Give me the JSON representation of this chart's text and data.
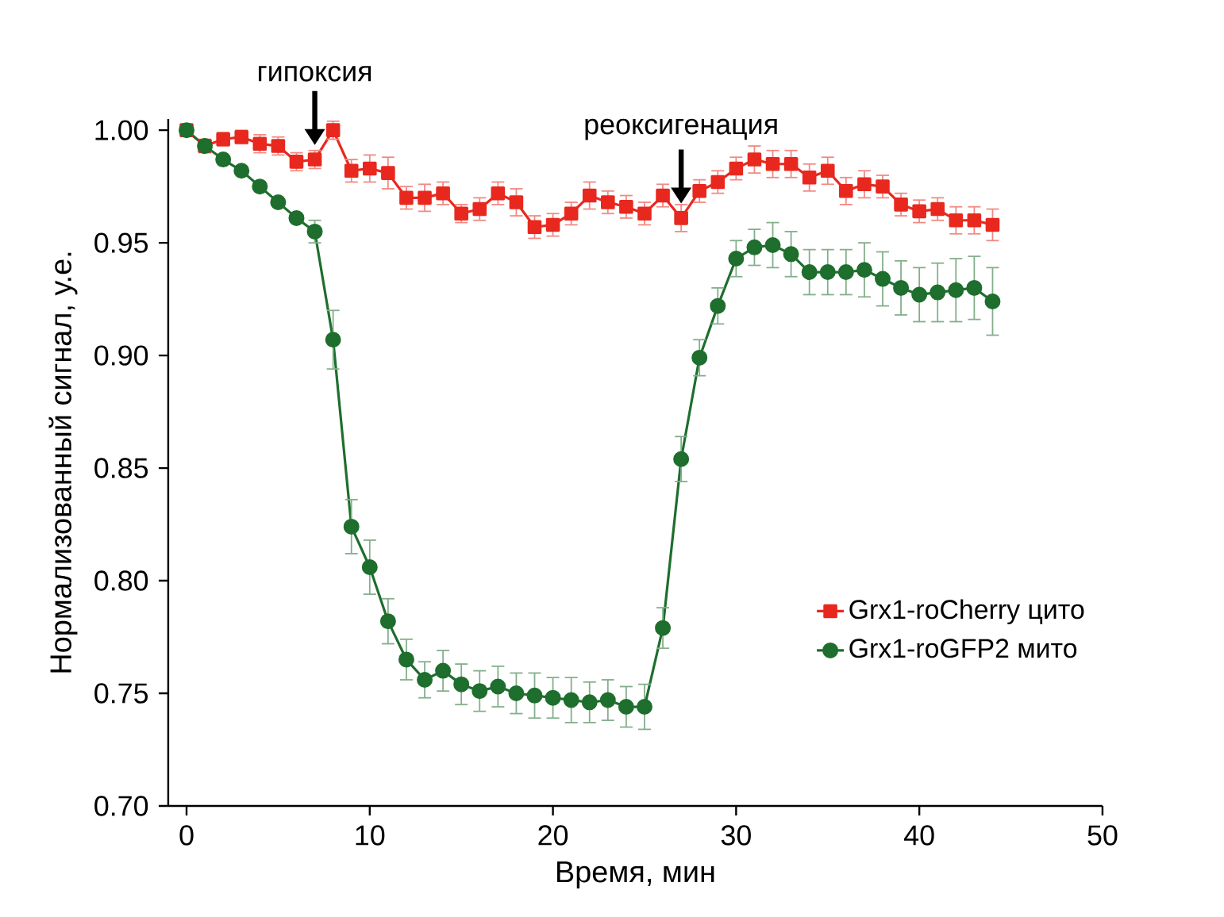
{
  "chart_data": {
    "type": "line",
    "xlabel": "Время, мин",
    "ylabel": "Нормализованный сигнал, у.е.",
    "x": [
      0,
      1,
      2,
      3,
      4,
      5,
      6,
      7,
      8,
      9,
      10,
      11,
      12,
      13,
      14,
      15,
      16,
      17,
      18,
      19,
      20,
      21,
      22,
      23,
      24,
      25,
      26,
      27,
      28,
      29,
      30,
      31,
      32,
      33,
      34,
      35,
      36,
      37,
      38,
      39,
      40,
      41,
      42,
      43,
      44
    ],
    "series": [
      {
        "name": "Grx1-roCherry цито",
        "color": "#e8281e",
        "marker": "square",
        "values": [
          1.0,
          0.993,
          0.996,
          0.997,
          0.994,
          0.993,
          0.986,
          0.987,
          1.0,
          0.982,
          0.983,
          0.981,
          0.97,
          0.97,
          0.972,
          0.963,
          0.965,
          0.972,
          0.968,
          0.957,
          0.958,
          0.963,
          0.971,
          0.968,
          0.966,
          0.963,
          0.971,
          0.961,
          0.973,
          0.977,
          0.983,
          0.987,
          0.985,
          0.985,
          0.979,
          0.982,
          0.973,
          0.976,
          0.975,
          0.967,
          0.964,
          0.965,
          0.96,
          0.96,
          0.958
        ],
        "errors": [
          null,
          0.003,
          0.003,
          0.003,
          0.004,
          0.004,
          0.004,
          0.004,
          0.004,
          0.005,
          0.006,
          0.007,
          0.005,
          0.006,
          0.005,
          0.004,
          0.005,
          0.005,
          0.006,
          0.005,
          0.005,
          0.005,
          0.006,
          0.005,
          0.005,
          0.005,
          0.005,
          0.006,
          0.005,
          0.005,
          0.005,
          0.006,
          0.006,
          0.006,
          0.006,
          0.006,
          0.006,
          0.006,
          0.005,
          0.005,
          0.005,
          0.005,
          0.006,
          0.006,
          0.007
        ]
      },
      {
        "name": "Grx1-roGFP2 мито",
        "color": "#1e6e2d",
        "marker": "circle",
        "values": [
          1.0,
          0.993,
          0.987,
          0.982,
          0.975,
          0.968,
          0.961,
          0.955,
          0.907,
          0.824,
          0.806,
          0.782,
          0.765,
          0.756,
          0.76,
          0.754,
          0.751,
          0.753,
          0.75,
          0.749,
          0.748,
          0.747,
          0.746,
          0.747,
          0.744,
          0.744,
          0.779,
          0.854,
          0.899,
          0.922,
          0.943,
          0.948,
          0.949,
          0.945,
          0.937,
          0.937,
          0.937,
          0.938,
          0.934,
          0.93,
          0.927,
          0.928,
          0.929,
          0.93,
          0.924
        ],
        "errors": [
          null,
          null,
          null,
          null,
          null,
          null,
          null,
          0.005,
          0.013,
          0.012,
          0.012,
          0.01,
          0.009,
          0.008,
          0.009,
          0.009,
          0.009,
          0.009,
          0.009,
          0.01,
          0.009,
          0.01,
          0.009,
          0.009,
          0.009,
          0.01,
          0.009,
          0.01,
          0.008,
          0.008,
          0.008,
          0.008,
          0.01,
          0.01,
          0.01,
          0.01,
          0.01,
          0.012,
          0.012,
          0.012,
          0.012,
          0.013,
          0.014,
          0.014,
          0.015
        ]
      }
    ],
    "xlim": [
      -1,
      50
    ],
    "xticks": [
      0,
      10,
      20,
      30,
      40,
      50
    ],
    "ylim": [
      0.7,
      1.005
    ],
    "yticks": [
      {
        "value": 0.7,
        "label": "0.70"
      },
      {
        "value": 0.75,
        "label": "0.75"
      },
      {
        "value": 0.8,
        "label": "0.80"
      },
      {
        "value": 0.85,
        "label": "0.85"
      },
      {
        "value": 0.9,
        "label": "0.90"
      },
      {
        "value": 0.95,
        "label": "0.95"
      },
      {
        "value": 1.0,
        "label": "1.00"
      }
    ],
    "grid": false,
    "legend": "bottom right",
    "line_style": "solid",
    "annotations": [
      {
        "text": "гипоксия",
        "x": 7,
        "y": 0.987
      },
      {
        "text": "реоксигенация",
        "x": 27,
        "y": 0.961
      }
    ]
  }
}
